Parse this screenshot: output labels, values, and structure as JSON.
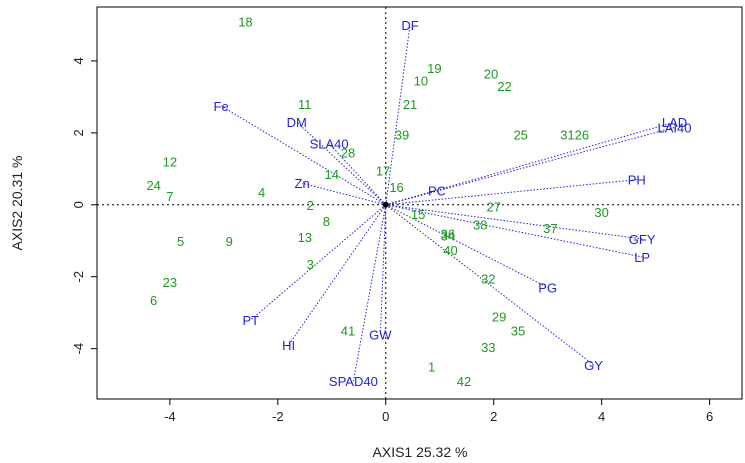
{
  "chart_data": {
    "type": "scatter",
    "subtype": "pca-biplot",
    "title": "",
    "xlabel": "AXIS1 25.32 %",
    "ylabel": "AXIS2 20.31 %",
    "xlim": [
      -5.35,
      6.6
    ],
    "ylim": [
      -5.4,
      5.5
    ],
    "xticks": [
      -4,
      -2,
      0,
      2,
      4,
      6
    ],
    "yticks": [
      -4,
      -2,
      0,
      2,
      4
    ],
    "grid": false,
    "reference_lines": "dotted lines at x=0 and y=0",
    "colors": {
      "observations": "#1d9a1d",
      "variables": "#2424d6",
      "vectors": "#2424d6",
      "axes": "#000000"
    },
    "observations": [
      {
        "label": "18",
        "x": -2.6,
        "y": 5.1
      },
      {
        "label": "11",
        "x": -1.5,
        "y": 2.8
      },
      {
        "label": "12",
        "x": -4.0,
        "y": 1.2
      },
      {
        "label": "24",
        "x": -4.3,
        "y": 0.55
      },
      {
        "label": "7",
        "x": -4.0,
        "y": 0.25
      },
      {
        "label": "4",
        "x": -2.3,
        "y": 0.35
      },
      {
        "label": "14",
        "x": -1.0,
        "y": 0.85
      },
      {
        "label": "28",
        "x": -0.7,
        "y": 1.45
      },
      {
        "label": "2",
        "x": -1.4,
        "y": 0.0
      },
      {
        "label": "8",
        "x": -1.1,
        "y": -0.45
      },
      {
        "label": "5",
        "x": -3.8,
        "y": -1.0
      },
      {
        "label": "9",
        "x": -2.9,
        "y": -1.0
      },
      {
        "label": "13",
        "x": -1.5,
        "y": -0.9
      },
      {
        "label": "3",
        "x": -1.4,
        "y": -1.65
      },
      {
        "label": "23",
        "x": -4.0,
        "y": -2.15
      },
      {
        "label": "6",
        "x": -4.3,
        "y": -2.65
      },
      {
        "label": "41",
        "x": -0.7,
        "y": -3.5
      },
      {
        "label": "19",
        "x": 0.9,
        "y": 3.8
      },
      {
        "label": "10",
        "x": 0.65,
        "y": 3.45
      },
      {
        "label": "20",
        "x": 1.95,
        "y": 3.65
      },
      {
        "label": "22",
        "x": 2.2,
        "y": 3.3
      },
      {
        "label": "21",
        "x": 0.45,
        "y": 2.8
      },
      {
        "label": "39",
        "x": 0.3,
        "y": 1.95
      },
      {
        "label": "17",
        "x": -0.05,
        "y": 0.95
      },
      {
        "label": "16",
        "x": 0.2,
        "y": 0.5
      },
      {
        "label": "25",
        "x": 2.5,
        "y": 1.95
      },
      {
        "label": "3126",
        "x": 3.5,
        "y": 1.95
      },
      {
        "label": "15",
        "x": 0.6,
        "y": -0.25
      },
      {
        "label": "27",
        "x": 2.0,
        "y": -0.05
      },
      {
        "label": "38",
        "x": 1.75,
        "y": -0.55
      },
      {
        "label": "36",
        "x": 1.15,
        "y": -0.8
      },
      {
        "label": "34",
        "x": 1.15,
        "y": -0.85
      },
      {
        "label": "40",
        "x": 1.2,
        "y": -1.25
      },
      {
        "label": "37",
        "x": 3.05,
        "y": -0.65
      },
      {
        "label": "30",
        "x": 4.0,
        "y": -0.2
      },
      {
        "label": "32",
        "x": 1.9,
        "y": -2.05
      },
      {
        "label": "29",
        "x": 2.1,
        "y": -3.1
      },
      {
        "label": "35",
        "x": 2.45,
        "y": -3.5
      },
      {
        "label": "33",
        "x": 1.9,
        "y": -3.95
      },
      {
        "label": "1",
        "x": 0.85,
        "y": -4.5
      },
      {
        "label": "42",
        "x": 1.45,
        "y": -4.9
      }
    ],
    "variables": [
      {
        "label": "DF",
        "x": 0.45,
        "y": 5.0
      },
      {
        "label": "LAD",
        "x": 5.35,
        "y": 2.3
      },
      {
        "label": "LAI40",
        "x": 5.35,
        "y": 2.15
      },
      {
        "label": "PH",
        "x": 4.65,
        "y": 0.7
      },
      {
        "label": "PC",
        "x": 0.95,
        "y": 0.4
      },
      {
        "label": "GFY",
        "x": 4.75,
        "y": -0.95
      },
      {
        "label": "LP",
        "x": 4.75,
        "y": -1.45
      },
      {
        "label": "PG",
        "x": 3.0,
        "y": -2.3
      },
      {
        "label": "GY",
        "x": 3.85,
        "y": -4.45
      },
      {
        "label": "GW",
        "x": -0.1,
        "y": -3.6
      },
      {
        "label": "SPAD40",
        "x": -0.6,
        "y": -4.9
      },
      {
        "label": "HI",
        "x": -1.8,
        "y": -3.9
      },
      {
        "label": "PT",
        "x": -2.5,
        "y": -3.2
      },
      {
        "label": "Zn",
        "x": -1.55,
        "y": 0.6
      },
      {
        "label": "SLA40",
        "x": -1.05,
        "y": 1.7
      },
      {
        "label": "DM",
        "x": -1.65,
        "y": 2.3
      },
      {
        "label": "Fe",
        "x": -3.05,
        "y": 2.75
      }
    ]
  }
}
